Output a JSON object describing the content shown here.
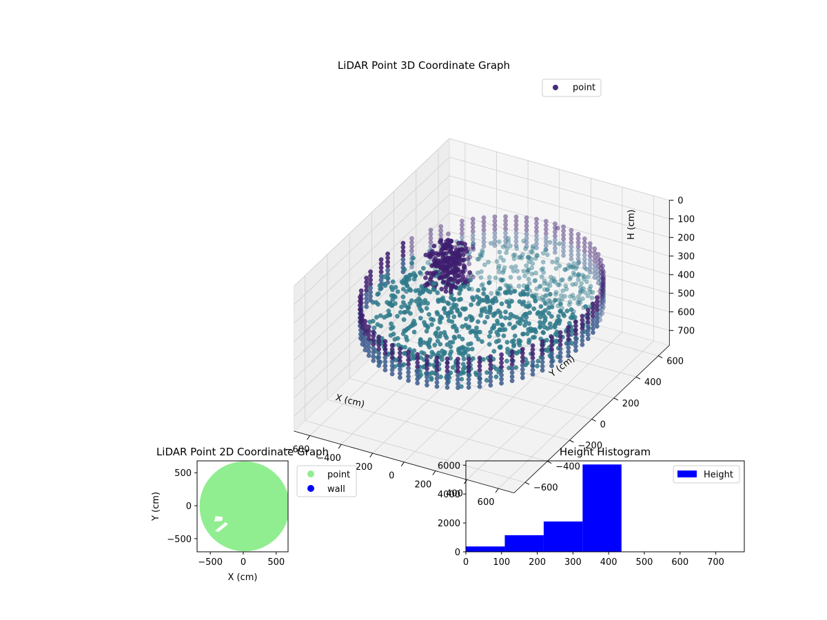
{
  "figure": {
    "background": "#ffffff"
  },
  "chart_data": [
    {
      "type": "scatter",
      "projection": "3d",
      "title": "LiDAR Point 3D Coordinate Graph",
      "xlabel": "X (cm)",
      "ylabel": "Y (cm)",
      "zlabel": "H (cm)",
      "xticks": [
        -600,
        -400,
        -200,
        0,
        200,
        400,
        600
      ],
      "yticks": [
        -600,
        -400,
        -200,
        0,
        200,
        400,
        600
      ],
      "zticks": [
        0,
        100,
        200,
        300,
        400,
        500,
        600,
        700
      ],
      "xlim": [
        -700,
        700
      ],
      "ylim": [
        -700,
        700
      ],
      "zlim": [
        0,
        780
      ],
      "z_inverted": true,
      "grid": true,
      "legend": {
        "position": "top-right",
        "entries": [
          {
            "label": "point",
            "color": "#472c7a"
          }
        ]
      },
      "colormap": "viridis",
      "colors": {
        "dark": "#3e1d6e",
        "mid": "#3b5a8d",
        "teal": "#2e7a8b"
      },
      "series": [
        {
          "name": "point",
          "description_of_shape": "ring",
          "ring_radius_cm": 640,
          "height_top_cm": 240,
          "height_bottom_cm": 400,
          "points_per_ring": 70
        }
      ],
      "outliers": [
        {
          "x": -620,
          "y": 200,
          "h": 520
        },
        {
          "x": 180,
          "y": 430,
          "h": 120
        }
      ]
    },
    {
      "type": "scatter",
      "title": "LiDAR Point 2D Coordinate Graph",
      "xlabel": "X (cm)",
      "ylabel": "Y (cm)",
      "xticks": [
        -500,
        0,
        500
      ],
      "yticks": [
        -500,
        0,
        500
      ],
      "xlim": [
        -700,
        680
      ],
      "ylim": [
        -700,
        680
      ],
      "legend": {
        "position": "outside-right",
        "entries": [
          {
            "label": "point",
            "color": "#90ee90"
          },
          {
            "label": "wall",
            "color": "#0000ff"
          }
        ]
      },
      "region_radius_cm": 650,
      "region_center": [
        20,
        -10
      ],
      "holes": [
        {
          "points": [
            [
              -420,
              -160
            ],
            [
              -310,
              -170
            ],
            [
              -320,
              -230
            ],
            [
              -440,
              -240
            ]
          ]
        },
        {
          "points": [
            [
              -430,
              -380
            ],
            [
              -330,
              -300
            ],
            [
              -270,
              -250
            ],
            [
              -230,
              -280
            ],
            [
              -290,
              -330
            ],
            [
              -380,
              -400
            ]
          ]
        }
      ]
    },
    {
      "type": "bar",
      "subtype": "histogram",
      "title": "Height Histogram",
      "xlabel": "",
      "ylabel": "",
      "xticks": [
        0,
        100,
        200,
        300,
        400,
        500,
        600,
        700
      ],
      "yticks": [
        0,
        2000,
        4000,
        6000
      ],
      "xlim": [
        0,
        780
      ],
      "ylim": [
        0,
        6300
      ],
      "legend": {
        "position": "top-right",
        "entries": [
          {
            "label": "Height",
            "color": "#0000ff"
          }
        ]
      },
      "series": [
        {
          "name": "Height",
          "color": "#0000ff",
          "bins": [
            {
              "start": 0,
              "end": 109,
              "count": 370
            },
            {
              "start": 109,
              "end": 218,
              "count": 1150
            },
            {
              "start": 218,
              "end": 327,
              "count": 2100
            },
            {
              "start": 327,
              "end": 436,
              "count": 6050
            }
          ]
        }
      ]
    }
  ]
}
